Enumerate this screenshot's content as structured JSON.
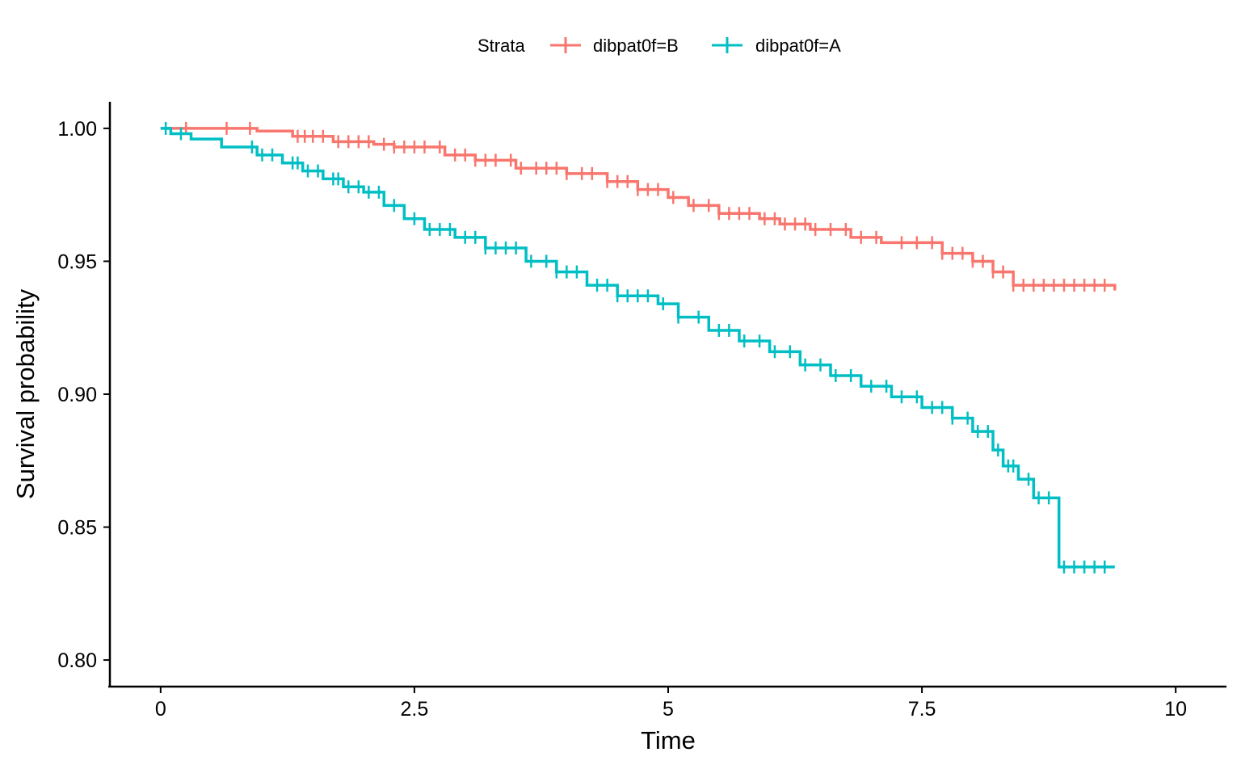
{
  "chart_data": {
    "type": "line",
    "subtype": "kaplan-meier step survival curve with censor marks",
    "xlabel": "Time",
    "ylabel": "Survival probability",
    "xlim": [
      -0.5,
      10.5
    ],
    "ylim": [
      0.79,
      1.01
    ],
    "x_ticks": [
      0,
      2.5,
      5,
      7.5,
      10
    ],
    "x_tick_labels": [
      "0",
      "2.5",
      "5",
      "7.5",
      "10"
    ],
    "y_ticks": [
      0.8,
      0.85,
      0.9,
      0.95,
      1.0
    ],
    "y_tick_labels": [
      "0.80",
      "0.85",
      "0.90",
      "0.95",
      "1.00"
    ],
    "grid": false,
    "legend": {
      "title": "Strata",
      "placement": "top-center",
      "entries": [
        "dibpat0f=B",
        "dibpat0f=A"
      ]
    },
    "series": [
      {
        "name": "dibpat0f=B",
        "color": "#F8766D",
        "x": [
          0,
          0.95,
          1.3,
          1.7,
          2.1,
          2.3,
          2.8,
          3.1,
          3.5,
          4.0,
          4.4,
          4.7,
          5.0,
          5.2,
          5.5,
          5.9,
          6.1,
          6.4,
          6.8,
          7.1,
          7.7,
          8.0,
          8.2,
          8.4,
          9.4
        ],
        "y": [
          1.0,
          0.999,
          0.997,
          0.995,
          0.994,
          0.993,
          0.99,
          0.988,
          0.985,
          0.983,
          0.98,
          0.977,
          0.974,
          0.971,
          0.968,
          0.966,
          0.964,
          0.962,
          0.959,
          0.957,
          0.953,
          0.95,
          0.946,
          0.941,
          0.939
        ],
        "censor_times": [
          0.25,
          0.65,
          0.88,
          1.35,
          1.42,
          1.5,
          1.6,
          1.75,
          1.85,
          1.95,
          2.05,
          2.2,
          2.3,
          2.4,
          2.5,
          2.6,
          2.75,
          2.9,
          3.0,
          3.1,
          3.2,
          3.3,
          3.45,
          3.55,
          3.7,
          3.8,
          3.9,
          4.0,
          4.15,
          4.25,
          4.4,
          4.5,
          4.6,
          4.7,
          4.8,
          4.9,
          5.05,
          5.25,
          5.4,
          5.5,
          5.6,
          5.7,
          5.8,
          5.95,
          6.05,
          6.15,
          6.25,
          6.35,
          6.45,
          6.6,
          6.75,
          6.9,
          7.05,
          7.3,
          7.45,
          7.6,
          7.7,
          7.8,
          7.9,
          8.0,
          8.1,
          8.2,
          8.3,
          8.4,
          8.5,
          8.6,
          8.7,
          8.8,
          8.9,
          9.0,
          9.1,
          9.2,
          9.3
        ]
      },
      {
        "name": "dibpat0f=A",
        "color": "#00BFC4",
        "x": [
          0,
          0.1,
          0.3,
          0.6,
          0.95,
          1.2,
          1.4,
          1.6,
          1.8,
          2.0,
          2.2,
          2.4,
          2.6,
          2.9,
          3.2,
          3.6,
          3.9,
          4.2,
          4.5,
          4.9,
          5.1,
          5.4,
          5.7,
          6.0,
          6.3,
          6.6,
          6.9,
          7.2,
          7.5,
          7.8,
          8.0,
          8.2,
          8.3,
          8.45,
          8.6,
          8.85,
          9.4
        ],
        "y": [
          1.0,
          0.998,
          0.996,
          0.993,
          0.99,
          0.987,
          0.984,
          0.981,
          0.978,
          0.976,
          0.971,
          0.966,
          0.962,
          0.959,
          0.955,
          0.95,
          0.946,
          0.941,
          0.937,
          0.934,
          0.929,
          0.924,
          0.92,
          0.916,
          0.911,
          0.907,
          0.903,
          0.899,
          0.895,
          0.891,
          0.886,
          0.879,
          0.873,
          0.868,
          0.861,
          0.835,
          0.835
        ],
        "censor_times": [
          0.05,
          0.2,
          0.9,
          1.0,
          1.1,
          1.3,
          1.35,
          1.45,
          1.55,
          1.7,
          1.75,
          1.85,
          1.95,
          2.05,
          2.15,
          2.3,
          2.5,
          2.65,
          2.75,
          2.85,
          3.0,
          3.1,
          3.2,
          3.3,
          3.4,
          3.5,
          3.65,
          3.8,
          3.9,
          4.0,
          4.1,
          4.3,
          4.4,
          4.5,
          4.6,
          4.7,
          4.8,
          4.95,
          5.1,
          5.3,
          5.5,
          5.6,
          5.75,
          5.9,
          6.05,
          6.2,
          6.35,
          6.5,
          6.65,
          6.8,
          7.0,
          7.15,
          7.3,
          7.45,
          7.6,
          7.7,
          7.8,
          7.95,
          8.05,
          8.15,
          8.25,
          8.35,
          8.4,
          8.55,
          8.65,
          8.75,
          8.9,
          9.0,
          9.1,
          9.2,
          9.3
        ]
      }
    ]
  }
}
